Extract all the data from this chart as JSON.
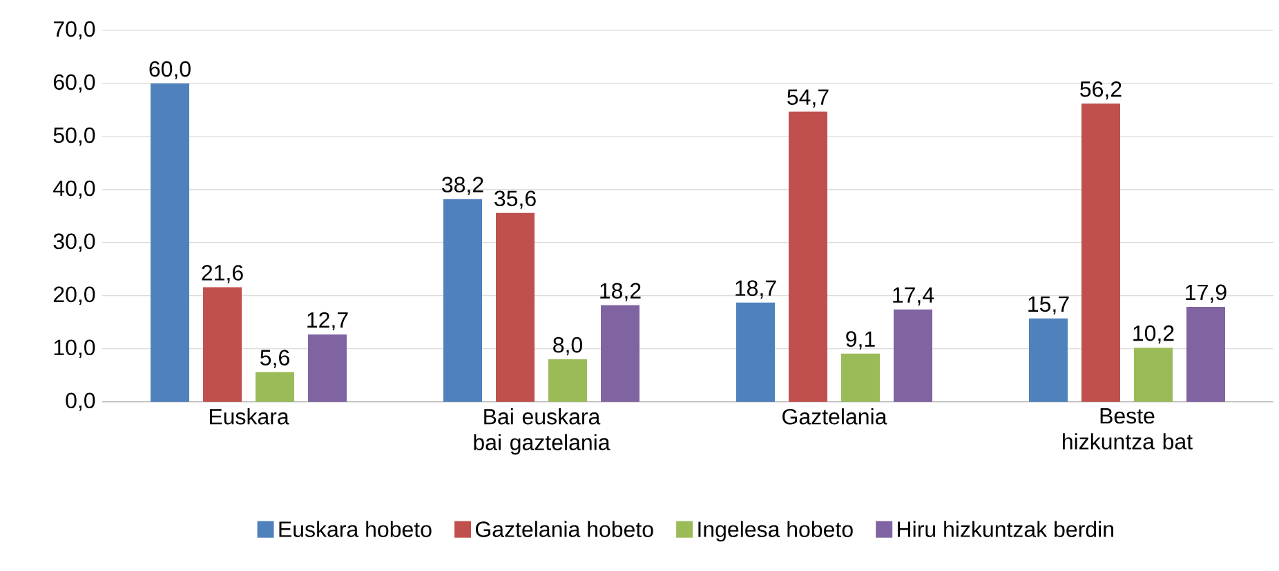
{
  "chart_data": {
    "type": "bar",
    "categories": [
      "Euskara",
      "Bai euskara bai gaztelania",
      "Gaztelania",
      "Beste hizkuntza bat"
    ],
    "series": [
      {
        "name": "Euskara hobeto",
        "color": "#4f81bd",
        "values": [
          60.0,
          38.2,
          18.7,
          15.7
        ],
        "value_labels": [
          "60,0",
          "38,2",
          "18,7",
          "15,7"
        ]
      },
      {
        "name": "Gaztelania hobeto",
        "color": "#c0504d",
        "values": [
          21.6,
          35.6,
          54.7,
          56.2
        ],
        "value_labels": [
          "21,6",
          "35,6",
          "54,7",
          "56,2"
        ]
      },
      {
        "name": "Ingelesa hobeto",
        "color": "#9bbb59",
        "values": [
          5.6,
          8.0,
          9.1,
          10.2
        ],
        "value_labels": [
          "5,6",
          "8,0",
          "9,1",
          "10,2"
        ]
      },
      {
        "name": "Hiru hizkuntzak berdin",
        "color": "#8064a2",
        "values": [
          12.7,
          18.2,
          17.4,
          17.9
        ],
        "value_labels": [
          "12,7",
          "18,2",
          "17,4",
          "17,9"
        ]
      }
    ],
    "ylim": [
      0,
      70
    ],
    "yticks": [
      {
        "value": 0,
        "label": "0,0"
      },
      {
        "value": 10,
        "label": "10,0"
      },
      {
        "value": 20,
        "label": "20,0"
      },
      {
        "value": 30,
        "label": "30,0"
      },
      {
        "value": 40,
        "label": "40,0"
      },
      {
        "value": 50,
        "label": "50,0"
      },
      {
        "value": 60,
        "label": "60,0"
      },
      {
        "value": 70,
        "label": "70,0"
      }
    ],
    "grid": "y",
    "legend": "bottom"
  }
}
